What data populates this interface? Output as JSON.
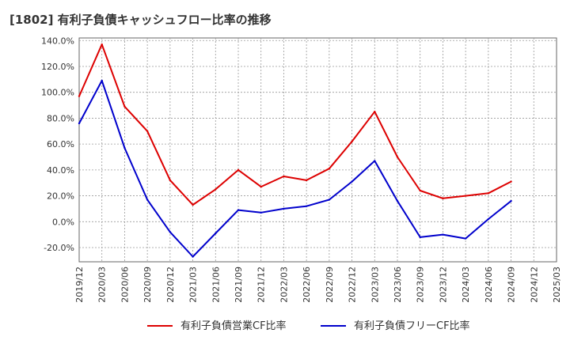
{
  "chart_data": {
    "type": "line",
    "title": "[1802]  有利子負債キャッシュフロー比率の推移",
    "x": [
      "2019/12",
      "2020/03",
      "2020/06",
      "2020/09",
      "2020/12",
      "2021/03",
      "2021/06",
      "2021/09",
      "2021/12",
      "2022/03",
      "2022/06",
      "2022/09",
      "2022/12",
      "2023/03",
      "2023/06",
      "2023/09",
      "2023/12",
      "2024/03",
      "2024/06",
      "2024/09",
      "2024/12",
      "2025/03"
    ],
    "ylim": [
      -31,
      142
    ],
    "yticks": [
      -20,
      0,
      20,
      40,
      60,
      80,
      100,
      120,
      140
    ],
    "ytick_labels": [
      "-20.0%",
      "0.0%",
      "20.0%",
      "40.0%",
      "60.0%",
      "80.0%",
      "100.0%",
      "120.0%",
      "140.0%"
    ],
    "grid": true,
    "legend_position": "bottom",
    "series": [
      {
        "name": "有利子負債営業CF比率",
        "color": "#dd0000",
        "values": [
          97,
          137,
          89,
          70,
          32,
          13,
          25,
          40,
          27,
          35,
          32,
          41,
          62,
          85,
          50,
          24,
          18,
          20,
          22,
          31,
          null,
          null
        ]
      },
      {
        "name": "有利子負債フリーCF比率",
        "color": "#0000cc",
        "values": [
          76,
          109,
          57,
          17,
          -8,
          -27,
          -9,
          9,
          7,
          10,
          12,
          17,
          31,
          47,
          16,
          -12,
          -10,
          -13,
          2,
          16,
          null,
          null
        ]
      }
    ]
  }
}
